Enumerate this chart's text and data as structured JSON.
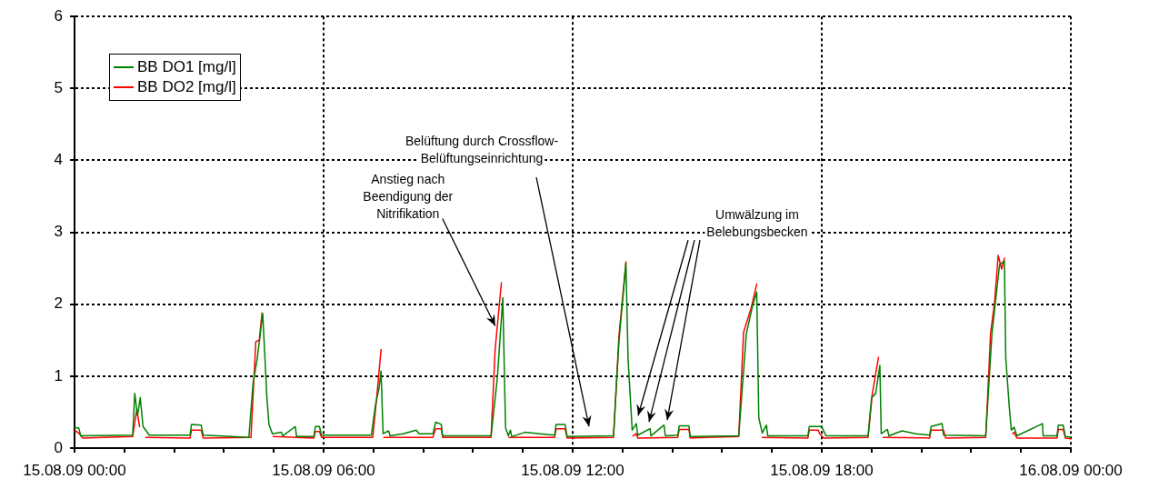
{
  "chart_data": {
    "type": "line",
    "xlim": [
      "--08-15T00:00",
      "--08-16T00:00"
    ],
    "xticks": [
      {
        "value": "--08-15T00:00",
        "label": "15.08.09 00:00"
      },
      {
        "value": "--08-15T01:12",
        "label": null
      },
      {
        "value": "--08-15T02:24",
        "label": null
      },
      {
        "value": "--08-15T03:36",
        "label": null
      },
      {
        "value": "--08-15T04:48",
        "label": null
      },
      {
        "value": "--08-15T06:00",
        "label": "15.08.09 06:00"
      },
      {
        "value": "--08-15T07:12",
        "label": null
      },
      {
        "value": "--08-15T08:24",
        "label": null
      },
      {
        "value": "--08-15T09:36",
        "label": null
      },
      {
        "value": "--08-15T10:48",
        "label": null
      },
      {
        "value": "--08-15T12:00",
        "label": "15.08.09 12:00"
      },
      {
        "value": "--08-15T13:12",
        "label": null
      },
      {
        "value": "--08-15T14:24",
        "label": null
      },
      {
        "value": "--08-15T15:36",
        "label": null
      },
      {
        "value": "--08-15T16:48",
        "label": null
      },
      {
        "value": "--08-15T18:00",
        "label": "15.08.09 18:00"
      },
      {
        "value": "--08-15T19:12",
        "label": null
      },
      {
        "value": "--08-15T20:24",
        "label": null
      },
      {
        "value": "--08-15T21:36",
        "label": null
      },
      {
        "value": "--08-15T22:48",
        "label": null
      },
      {
        "value": "--08-16T00:00",
        "label": "16.08.09 00:00"
      }
    ],
    "ylim": [
      0,
      6
    ],
    "yticks": [
      0,
      1,
      2,
      3,
      4,
      5,
      6
    ],
    "grid": true,
    "legend": "top left",
    "marker": "none",
    "line_style": "solid",
    "series": [
      {
        "name": "BB DO1 [mg/l]",
        "color": "#008000",
        "x": [
          "--08-15T00:00",
          "--08-15T00:06",
          "--08-15T00:09",
          "--08-15T01:24",
          "--08-15T01:27",
          "--08-15T01:31",
          "--08-15T01:35",
          "--08-15T01:39",
          "--08-15T01:48",
          "--08-15T02:47",
          "--08-15T02:49",
          "--08-15T03:03",
          "--08-15T03:06",
          "--08-15T04:12",
          "--08-15T04:18",
          "--08-15T04:24",
          "--08-15T04:32",
          "--08-15T04:38",
          "--08-15T04:41",
          "--08-15T04:46",
          "--08-15T04:59",
          "--08-15T05:01",
          "--08-15T05:19",
          "--08-15T05:21",
          "--08-15T05:46",
          "--08-15T05:48",
          "--08-15T05:54",
          "--08-15T05:57",
          "--08-15T07:09",
          "--08-15T07:15",
          "--08-15T07:20",
          "--08-15T07:23",
          "--08-15T07:26",
          "--08-15T07:34",
          "--08-15T07:36",
          "--08-15T07:55",
          "--08-15T08:14",
          "--08-15T08:18",
          "--08-15T08:38",
          "--08-15T08:42",
          "--08-15T08:50",
          "--08-15T08:52",
          "--08-15T10:02",
          "--08-15T10:11",
          "--08-15T10:19",
          "--08-15T10:23",
          "--08-15T10:27",
          "--08-15T10:30",
          "--08-15T10:32",
          "--08-15T10:51",
          "--08-15T11:12",
          "--08-15T11:34",
          "--08-15T11:36",
          "--08-15T11:49",
          "--08-15T11:52",
          "--08-15T12:59",
          "--08-15T13:07",
          "--08-15T13:17",
          "--08-15T13:20",
          "--08-15T13:23",
          "--08-15T13:26",
          "--08-15T13:32",
          "--08-15T13:34",
          "--08-15T13:52",
          "--08-15T13:53",
          "--08-15T14:12",
          "--08-15T14:14",
          "--08-15T14:32",
          "--08-15T14:34",
          "--08-15T14:48",
          "--08-15T14:50",
          "--08-15T16:00",
          "--08-15T16:11",
          "--08-15T16:20",
          "--08-15T16:26",
          "--08-15T16:29",
          "--08-15T16:34",
          "--08-15T16:40",
          "--08-15T16:42",
          "--08-15T17:40",
          "--08-15T17:42",
          "--08-15T17:55",
          "--08-15T18:00",
          "--08-15T18:06",
          "--08-15T19:07",
          "--08-15T19:12",
          "--08-15T19:18",
          "--08-15T19:24",
          "--08-15T19:26",
          "--08-15T19:35",
          "--08-15T19:37",
          "--08-15T19:56",
          "--08-15T20:16",
          "--08-15T20:36",
          "--08-15T20:38",
          "--08-15T20:54",
          "--08-15T20:56",
          "--08-15T21:57",
          "--08-15T22:06",
          "--08-15T22:17",
          "--08-15T22:24",
          "--08-15T22:26",
          "--08-15T22:31",
          "--08-15T22:34",
          "--08-15T22:38",
          "--08-15T22:42",
          "--08-15T23:19",
          "--08-15T23:20",
          "--08-15T23:40",
          "--08-15T23:42",
          "--08-15T23:49",
          "--08-15T23:52",
          "--08-16T00:00"
        ],
        "values": [
          0.28,
          0.28,
          0.17,
          0.18,
          0.76,
          0.45,
          0.7,
          0.3,
          0.18,
          0.18,
          0.33,
          0.32,
          0.18,
          0.15,
          0.9,
          1.24,
          1.87,
          0.71,
          0.33,
          0.2,
          0.22,
          0.17,
          0.3,
          0.16,
          0.16,
          0.3,
          0.3,
          0.18,
          0.18,
          0.6,
          0.83,
          1.07,
          0.2,
          0.24,
          0.17,
          0.2,
          0.25,
          0.2,
          0.2,
          0.36,
          0.33,
          0.17,
          0.17,
          0.96,
          2.09,
          0.28,
          0.17,
          0.25,
          0.16,
          0.22,
          0.2,
          0.18,
          0.33,
          0.33,
          0.16,
          0.17,
          1.5,
          2.57,
          1.25,
          0.75,
          0.25,
          0.34,
          0.18,
          0.27,
          0.17,
          0.32,
          0.17,
          0.18,
          0.31,
          0.31,
          0.16,
          0.17,
          1.59,
          1.98,
          2.17,
          0.42,
          0.21,
          0.32,
          0.17,
          0.17,
          0.3,
          0.3,
          0.3,
          0.17,
          0.17,
          0.7,
          0.76,
          1.15,
          0.2,
          0.26,
          0.17,
          0.24,
          0.2,
          0.18,
          0.3,
          0.34,
          0.18,
          0.17,
          1.59,
          2.55,
          2.6,
          1.25,
          0.58,
          0.25,
          0.29,
          0.17,
          0.34,
          0.17,
          0.17,
          0.32,
          0.32,
          0.16,
          0.15
        ]
      },
      {
        "name": "BB DO2 [mg/l]",
        "color": "#ff0000",
        "x": [
          "--08-15T00:00",
          "--08-15T00:07",
          "--08-15T00:12",
          "--08-15T01:24",
          "--08-15T01:30",
          "--08-15T01:34",
          "--08-15T01:38",
          "--08-15T01:43",
          "--08-15T02:47",
          "--08-15T02:49",
          "--08-15T03:03",
          "--08-15T03:06",
          "--08-15T04:15",
          "--08-15T04:22",
          "--08-15T04:27",
          "--08-15T04:31",
          "--08-15T04:39",
          "--08-15T04:47",
          "--08-15T05:46",
          "--08-15T05:48",
          "--08-15T05:54",
          "--08-15T05:57",
          "--08-15T07:11",
          "--08-15T07:17",
          "--08-15T07:23",
          "--08-15T07:25",
          "--08-15T07:27",
          "--08-15T08:38",
          "--08-15T08:42",
          "--08-15T08:50",
          "--08-15T08:52",
          "--08-15T10:02",
          "--08-15T10:08",
          "--08-15T10:17",
          "--08-15T10:22",
          "--08-15T10:28",
          "--08-15T11:34",
          "--08-15T11:36",
          "--08-15T11:49",
          "--08-15T11:52",
          "--08-15T12:59",
          "--08-15T13:07",
          "--08-15T13:17",
          "--08-15T13:22",
          "--08-15T13:27",
          "--08-15T13:32",
          "--08-15T13:34",
          "--08-15T14:32",
          "--08-15T14:34",
          "--08-15T14:48",
          "--08-15T14:50",
          "--08-15T16:00",
          "--08-15T16:07",
          "--08-15T16:18",
          "--08-15T16:26",
          "--08-15T16:30",
          "--08-15T16:34",
          "--08-15T17:40",
          "--08-15T17:42",
          "--08-15T17:55",
          "--08-15T17:57",
          "--08-15T18:03",
          "--08-15T19:07",
          "--08-15T19:13",
          "--08-15T19:22",
          "--08-15T19:25",
          "--08-15T19:29",
          "--08-15T20:36",
          "--08-15T20:38",
          "--08-15T20:56",
          "--08-15T20:59",
          "--08-15T21:57",
          "--08-15T22:04",
          "--08-15T22:10",
          "--08-15T22:15",
          "--08-15T22:20",
          "--08-15T22:24",
          "--08-15T22:30",
          "--08-15T22:36",
          "--08-15T22:38",
          "--08-15T22:42",
          "--08-15T23:40",
          "--08-15T23:42",
          "--08-15T23:49",
          "--08-15T23:52",
          "--08-16T00:00"
        ],
        "values": [
          0.25,
          0.2,
          0.14,
          0.16,
          0.54,
          0.3,
          null,
          0.15,
          0.14,
          0.25,
          0.25,
          0.14,
          0.15,
          1.48,
          1.5,
          1.88,
          null,
          0.16,
          0.14,
          0.23,
          0.23,
          0.15,
          0.15,
          0.73,
          1.37,
          null,
          0.15,
          0.15,
          0.27,
          0.27,
          0.15,
          0.15,
          1.38,
          2.3,
          null,
          0.15,
          0.15,
          0.27,
          0.27,
          0.14,
          0.15,
          1.57,
          2.59,
          null,
          0.17,
          0.2,
          0.14,
          0.15,
          0.26,
          0.26,
          0.14,
          0.16,
          1.61,
          1.95,
          2.28,
          null,
          0.15,
          0.14,
          0.25,
          0.25,
          0.2,
          0.14,
          0.15,
          0.75,
          1.26,
          null,
          0.15,
          0.14,
          0.25,
          0.25,
          0.14,
          0.15,
          1.59,
          2.05,
          2.68,
          2.49,
          2.64,
          null,
          0.2,
          0.22,
          0.14,
          0.14,
          0.26,
          0.26,
          0.14,
          0.13
        ]
      }
    ],
    "annotations": [
      {
        "text": "Anstieg nach\nBeendigung der\nNitrifikation",
        "x": "--08-15T10:08",
        "y": 1.7
      },
      "Belüftung durch Crossflow-\nBelüftungseinrichtung",
      "Umwälzung im\nBelebungsbecken"
    ]
  }
}
